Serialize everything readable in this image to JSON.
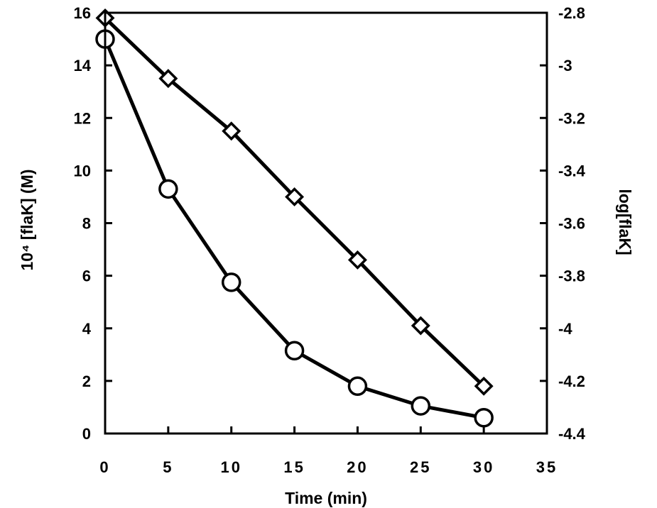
{
  "chart_data": {
    "type": "line",
    "xlabel": "Time  (min)",
    "ylabel_left": "10⁴ [flaK] (M)",
    "ylabel_right": "log[flaK]",
    "xlim": [
      0,
      35
    ],
    "ylim_left": [
      0,
      16
    ],
    "ylim_right": [
      -4.4,
      -2.8
    ],
    "x_ticks": [
      "0",
      "5",
      "10",
      "15",
      "20",
      "25",
      "30",
      "35"
    ],
    "y_left_ticks": [
      "0",
      "2",
      "4",
      "6",
      "8",
      "10",
      "12",
      "14",
      "16"
    ],
    "y_right_ticks": [
      "-4.4",
      "-4.2",
      "-4",
      "-3.8",
      "-3.6",
      "-3.4",
      "-3.2",
      "-3",
      "-2.8"
    ],
    "grid": false,
    "series": [
      {
        "marker": "circle",
        "axis": "left",
        "x": [
          0,
          5,
          10,
          15,
          20,
          25,
          30
        ],
        "y": [
          15.0,
          9.3,
          5.75,
          3.15,
          1.8,
          1.05,
          0.6
        ]
      },
      {
        "marker": "diamond",
        "axis": "right",
        "x": [
          0,
          5,
          10,
          15,
          20,
          25,
          30
        ],
        "y": [
          -2.82,
          -3.05,
          -3.25,
          -3.5,
          -3.74,
          -3.99,
          -4.22
        ]
      }
    ]
  }
}
